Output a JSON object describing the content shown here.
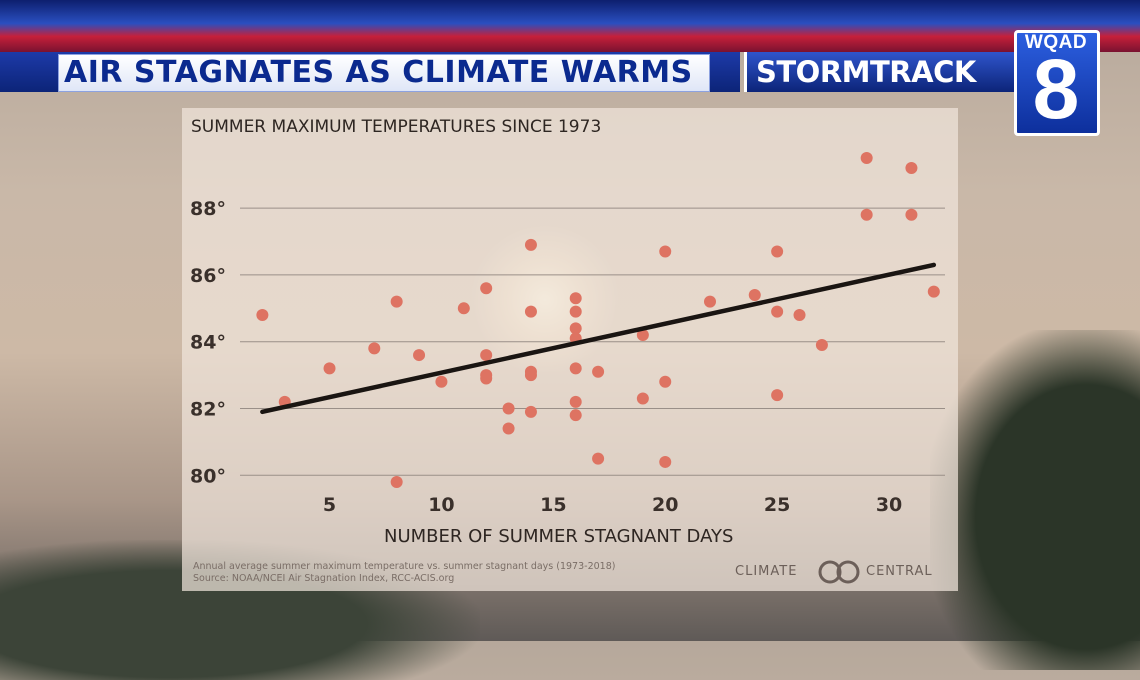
{
  "broadcast": {
    "headline": "AIR STAGNATES AS CLIMATE WARMS",
    "segment": "STORMTRACK",
    "station_call": "WQAD",
    "station_number": "8"
  },
  "chart_data": {
    "type": "scatter",
    "title": "SUMMER MAXIMUM TEMPERATURES SINCE 1973",
    "xlabel": "NUMBER OF SUMMER STAGNANT DAYS",
    "ylabel": "",
    "x_ticks": [
      5,
      10,
      15,
      20,
      25,
      30
    ],
    "x_tick_labels": [
      "5",
      "10",
      "15",
      "20",
      "25",
      "30"
    ],
    "y_ticks": [
      80,
      82,
      84,
      86,
      88
    ],
    "y_tick_labels": [
      "80°",
      "82°",
      "84°",
      "86°",
      "88°"
    ],
    "xlim": [
      1,
      32.5
    ],
    "ylim": [
      79.5,
      89.8
    ],
    "grid": "horizontal",
    "point_color": "#de7362",
    "trendline_color": "#1a1512",
    "series": [
      {
        "points": [
          [
            2,
            84.8
          ],
          [
            3,
            82.2
          ],
          [
            5,
            83.2
          ],
          [
            7,
            83.8
          ],
          [
            8,
            85.2
          ],
          [
            8,
            79.8
          ],
          [
            9,
            83.6
          ],
          [
            10,
            82.8
          ],
          [
            11,
            85.0
          ],
          [
            12,
            85.6
          ],
          [
            12,
            83.6
          ],
          [
            12,
            83.0
          ],
          [
            12,
            82.9
          ],
          [
            13,
            82.0
          ],
          [
            13,
            81.4
          ],
          [
            14,
            86.9
          ],
          [
            14,
            84.9
          ],
          [
            14,
            83.1
          ],
          [
            14,
            83.0
          ],
          [
            14,
            81.9
          ],
          [
            16,
            85.3
          ],
          [
            16,
            84.9
          ],
          [
            16,
            84.4
          ],
          [
            16,
            84.1
          ],
          [
            16,
            83.2
          ],
          [
            16,
            82.2
          ],
          [
            16,
            81.8
          ],
          [
            17,
            83.1
          ],
          [
            17,
            80.5
          ],
          [
            19,
            84.2
          ],
          [
            19,
            82.3
          ],
          [
            20,
            86.7
          ],
          [
            20,
            82.8
          ],
          [
            20,
            80.4
          ],
          [
            22,
            85.2
          ],
          [
            24,
            85.4
          ],
          [
            25,
            86.7
          ],
          [
            25,
            84.9
          ],
          [
            25,
            82.4
          ],
          [
            26,
            84.8
          ],
          [
            27,
            83.9
          ],
          [
            29,
            89.5
          ],
          [
            29,
            87.8
          ],
          [
            31,
            89.2
          ],
          [
            31,
            87.8
          ],
          [
            32,
            85.5
          ]
        ]
      }
    ],
    "trendline": {
      "x": [
        2,
        32
      ],
      "y": [
        81.9,
        86.3
      ]
    }
  },
  "footnote": {
    "line1": "Annual average summer maximum temperature vs. summer stagnant days (1973-2018)",
    "line2": "Source: NOAA/NCEI Air Stagnation Index, RCC-ACIS.org"
  },
  "credit": {
    "left": "CLIMATE",
    "right": "CENTRAL",
    "icon": "climate-central-logo-icon"
  }
}
